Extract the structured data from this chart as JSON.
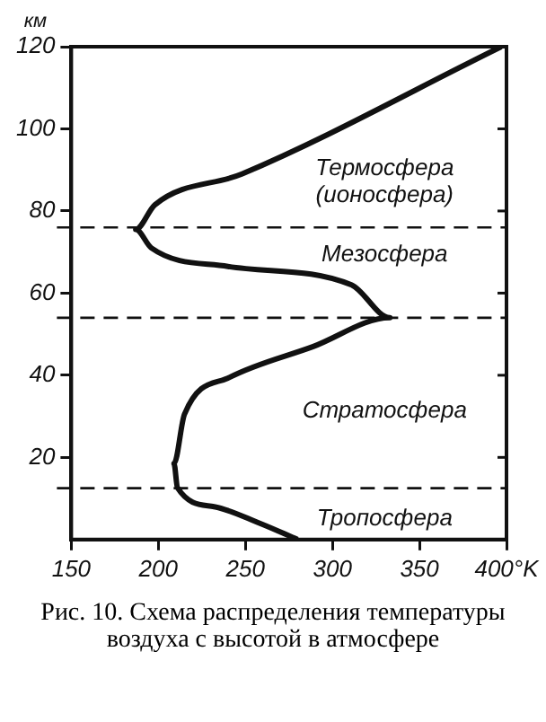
{
  "chart_data": {
    "type": "line",
    "title": "Рис. 10. Схема распределения температуры воздуха с высотой в атмосфере",
    "ylabel": "км",
    "series": [
      {
        "color": "#111111",
        "x": [
          280,
          258,
          232,
          211,
          209,
          215,
          241,
          289,
          333,
          311,
          240,
          196,
          187,
          198,
          248,
          397
        ],
        "values": [
          0,
          4,
          8,
          12.6,
          18.5,
          30.5,
          39.5,
          47,
          54,
          62,
          66.5,
          71,
          75.5,
          81.5,
          89,
          120
        ]
      }
    ],
    "xlim": [
      150,
      400
    ],
    "xticks": [
      150,
      200,
      250,
      300,
      350,
      {
        "value": 400,
        "label": "400°K"
      }
    ],
    "ylim": [
      0,
      120
    ],
    "yticks": [
      20,
      40,
      60,
      80,
      100,
      120
    ],
    "ref_lines": [
      {
        "axis": "y",
        "value": 12.5,
        "line_style": "dashed"
      },
      {
        "axis": "y",
        "value": 54,
        "line_style": "dashed"
      },
      {
        "axis": "y",
        "value": 76,
        "line_style": "dashed"
      }
    ],
    "annotations": [
      "Термосфера\n(ионосфера)",
      "Мезосфера",
      "Стратосфера",
      "Тропосфера"
    ],
    "grid": false,
    "legend": false,
    "marker": "none",
    "line_style": "solid"
  }
}
